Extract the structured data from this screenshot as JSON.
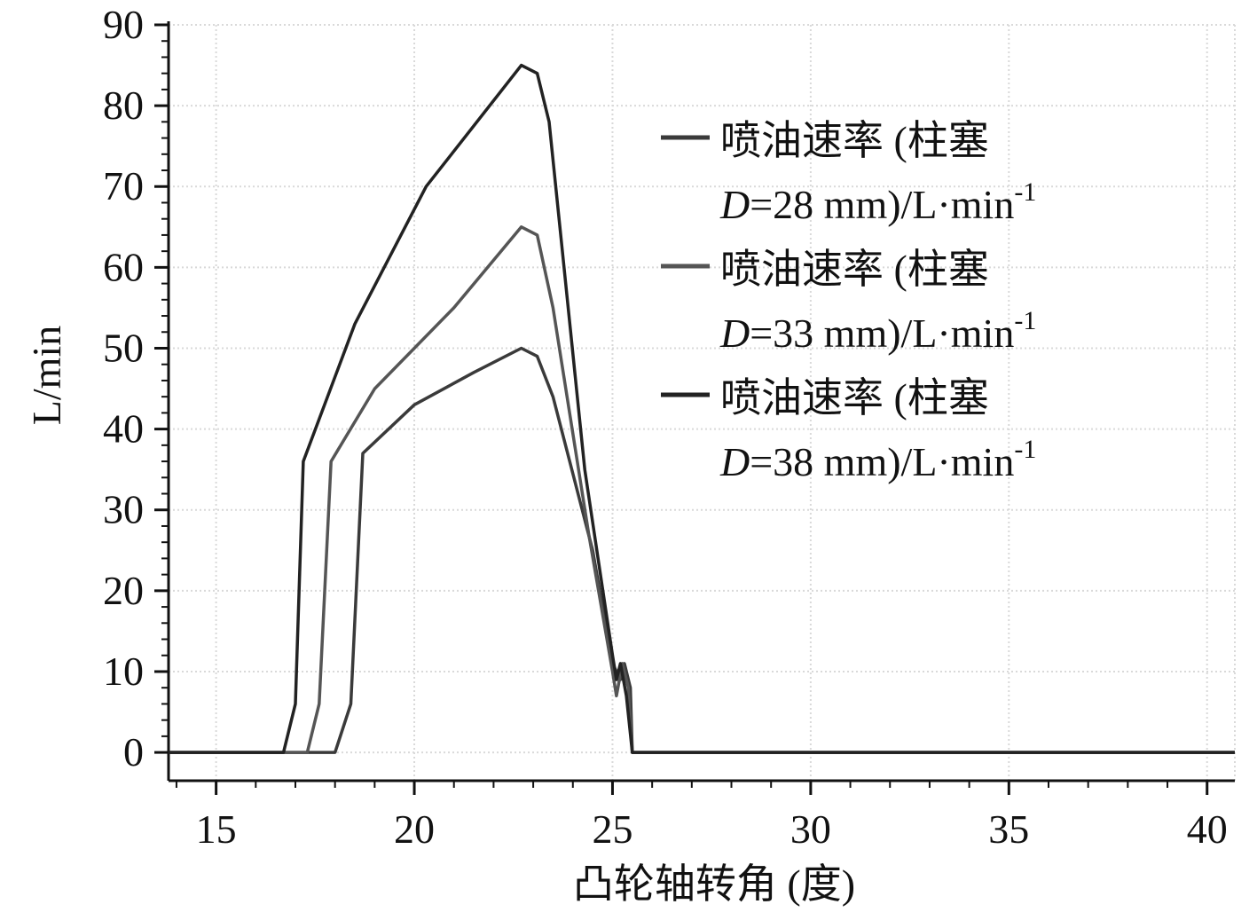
{
  "chart_data": {
    "type": "line",
    "title": "",
    "xlabel": "凸轮轴转角 (度)",
    "ylabel": "L/min",
    "xlim": [
      13.8,
      40.7
    ],
    "ylim": [
      -3.5,
      90
    ],
    "xticks": [
      15,
      20,
      25,
      30,
      35,
      40
    ],
    "yticks": [
      0,
      10,
      20,
      30,
      40,
      50,
      60,
      70,
      80,
      90
    ],
    "grid": true,
    "legend_position": "top-right",
    "series": [
      {
        "name": "喷油速率 (柱塞 D=28 mm)/L·min-1",
        "legend_line1": "喷油速率 (柱塞",
        "legend_var": "D",
        "legend_rest": "=28 mm)/L·min",
        "legend_sup": "-1",
        "color": "#3a3a3a",
        "x": [
          13.8,
          18.0,
          18.4,
          18.7,
          20.0,
          21.5,
          22.7,
          23.1,
          23.5,
          24.5,
          25.0,
          25.2,
          25.3,
          25.45,
          25.5,
          40.7
        ],
        "y": [
          0,
          0,
          6,
          37,
          43,
          47,
          50,
          49,
          44,
          25,
          11,
          9,
          11,
          8,
          0,
          0
        ]
      },
      {
        "name": "喷油速率 (柱塞 D=33 mm)/L·min-1",
        "legend_line1": "喷油速率 (柱塞",
        "legend_var": "D",
        "legend_rest": "=33 mm)/L·min",
        "legend_sup": "-1",
        "color": "#555555",
        "x": [
          13.8,
          17.3,
          17.6,
          17.9,
          19.0,
          21.0,
          22.7,
          23.1,
          23.5,
          24.4,
          25.0,
          25.1,
          25.25,
          25.4,
          25.5,
          40.7
        ],
        "y": [
          0,
          0,
          6,
          36,
          45,
          55,
          65,
          64,
          55,
          27,
          10,
          7,
          11,
          8,
          0,
          0
        ]
      },
      {
        "name": "喷油速率 (柱塞 D=38 mm)/L·min-1",
        "legend_line1": "喷油速率 (柱塞",
        "legend_var": "D",
        "legend_rest": "=38 mm)/L·min",
        "legend_sup": "-1",
        "color": "#222222",
        "x": [
          13.8,
          16.7,
          17.0,
          17.2,
          18.5,
          20.3,
          22.7,
          23.1,
          23.4,
          24.3,
          25.0,
          25.1,
          25.2,
          25.35,
          25.5,
          40.7
        ],
        "y": [
          0,
          0,
          6,
          36,
          53,
          70,
          85,
          84,
          78,
          35,
          12,
          9,
          11,
          7,
          0,
          0
        ]
      }
    ]
  }
}
